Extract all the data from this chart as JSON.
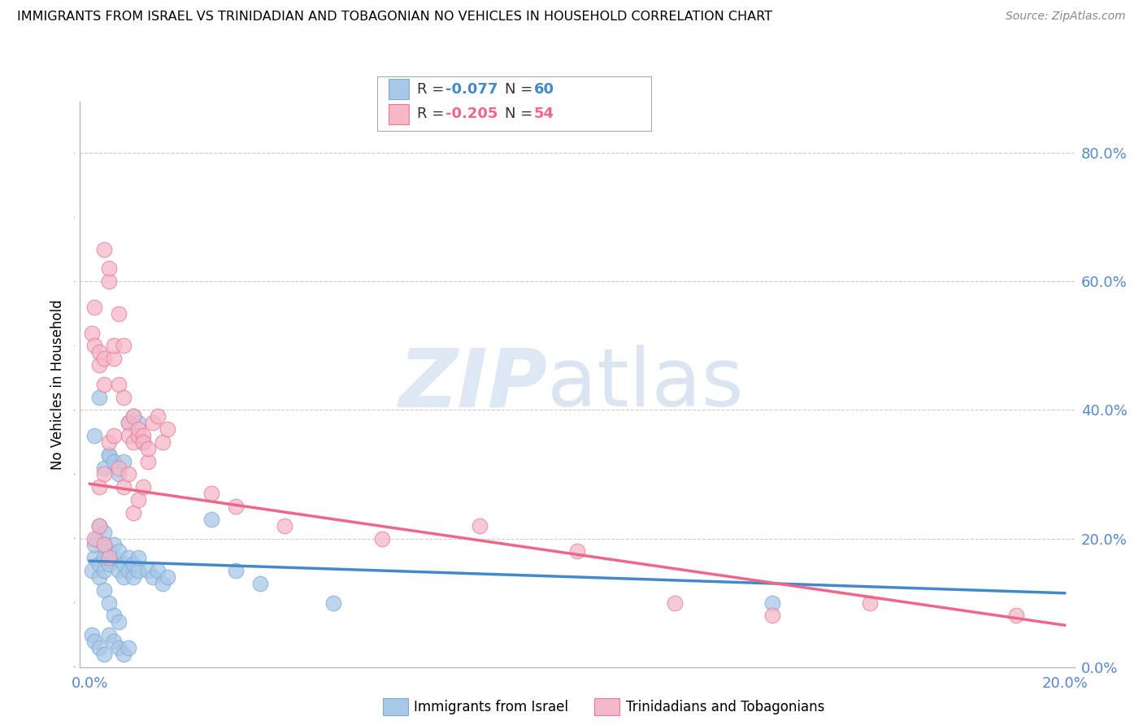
{
  "title": "IMMIGRANTS FROM ISRAEL VS TRINIDADIAN AND TOBAGONIAN NO VEHICLES IN HOUSEHOLD CORRELATION CHART",
  "source": "Source: ZipAtlas.com",
  "ylabel": "No Vehicles in Household",
  "ylabel_ticks": [
    "0.0%",
    "20.0%",
    "40.0%",
    "60.0%",
    "80.0%"
  ],
  "ylabel_vals": [
    0.0,
    0.2,
    0.4,
    0.6,
    0.8
  ],
  "xlim": [
    0.0,
    0.2
  ],
  "ylim": [
    0.0,
    0.88
  ],
  "legend1_r": "-0.077",
  "legend1_n": "60",
  "legend2_r": "-0.205",
  "legend2_n": "54",
  "color_blue": "#a8c8e8",
  "color_blue_edge": "#7aaad0",
  "color_pink": "#f4b8c8",
  "color_pink_edge": "#e87898",
  "color_blue_line": "#4488cc",
  "color_pink_line": "#ee6688",
  "color_tick": "#5588cc",
  "legend_label1": "Immigrants from Israel",
  "legend_label2": "Trinidadians and Tobagonians",
  "israel_x": [
    0.0005,
    0.001,
    0.001,
    0.0015,
    0.002,
    0.002,
    0.002,
    0.003,
    0.003,
    0.003,
    0.003,
    0.004,
    0.004,
    0.004,
    0.005,
    0.005,
    0.006,
    0.006,
    0.007,
    0.007,
    0.008,
    0.008,
    0.009,
    0.009,
    0.01,
    0.01,
    0.011,
    0.012,
    0.013,
    0.014,
    0.015,
    0.016,
    0.001,
    0.002,
    0.003,
    0.004,
    0.005,
    0.006,
    0.007,
    0.008,
    0.009,
    0.01,
    0.003,
    0.004,
    0.005,
    0.006,
    0.025,
    0.03,
    0.035,
    0.05,
    0.0005,
    0.001,
    0.002,
    0.003,
    0.004,
    0.005,
    0.006,
    0.007,
    0.008,
    0.14
  ],
  "israel_y": [
    0.15,
    0.17,
    0.19,
    0.2,
    0.14,
    0.16,
    0.22,
    0.15,
    0.17,
    0.19,
    0.21,
    0.16,
    0.18,
    0.33,
    0.17,
    0.19,
    0.15,
    0.18,
    0.14,
    0.16,
    0.15,
    0.17,
    0.14,
    0.16,
    0.15,
    0.17,
    0.35,
    0.15,
    0.14,
    0.15,
    0.13,
    0.14,
    0.36,
    0.42,
    0.31,
    0.33,
    0.32,
    0.3,
    0.32,
    0.38,
    0.39,
    0.38,
    0.12,
    0.1,
    0.08,
    0.07,
    0.23,
    0.15,
    0.13,
    0.1,
    0.05,
    0.04,
    0.03,
    0.02,
    0.05,
    0.04,
    0.03,
    0.02,
    0.03,
    0.1
  ],
  "trini_x": [
    0.0005,
    0.001,
    0.001,
    0.002,
    0.002,
    0.003,
    0.003,
    0.003,
    0.004,
    0.004,
    0.005,
    0.005,
    0.006,
    0.006,
    0.007,
    0.007,
    0.008,
    0.008,
    0.009,
    0.009,
    0.01,
    0.01,
    0.011,
    0.011,
    0.012,
    0.012,
    0.013,
    0.014,
    0.015,
    0.016,
    0.002,
    0.003,
    0.004,
    0.005,
    0.006,
    0.007,
    0.008,
    0.009,
    0.01,
    0.011,
    0.025,
    0.03,
    0.04,
    0.06,
    0.08,
    0.1,
    0.12,
    0.14,
    0.16,
    0.19,
    0.001,
    0.002,
    0.003,
    0.004
  ],
  "trini_y": [
    0.52,
    0.5,
    0.56,
    0.47,
    0.49,
    0.44,
    0.48,
    0.65,
    0.6,
    0.62,
    0.48,
    0.5,
    0.55,
    0.44,
    0.5,
    0.42,
    0.38,
    0.36,
    0.35,
    0.39,
    0.36,
    0.37,
    0.36,
    0.35,
    0.32,
    0.34,
    0.38,
    0.39,
    0.35,
    0.37,
    0.28,
    0.3,
    0.35,
    0.36,
    0.31,
    0.28,
    0.3,
    0.24,
    0.26,
    0.28,
    0.27,
    0.25,
    0.22,
    0.2,
    0.22,
    0.18,
    0.1,
    0.08,
    0.1,
    0.08,
    0.2,
    0.22,
    0.19,
    0.17
  ],
  "israel_line_x": [
    0.0,
    0.2
  ],
  "israel_line_y": [
    0.165,
    0.115
  ],
  "trini_line_x": [
    0.0,
    0.2
  ],
  "trini_line_y": [
    0.285,
    0.065
  ]
}
